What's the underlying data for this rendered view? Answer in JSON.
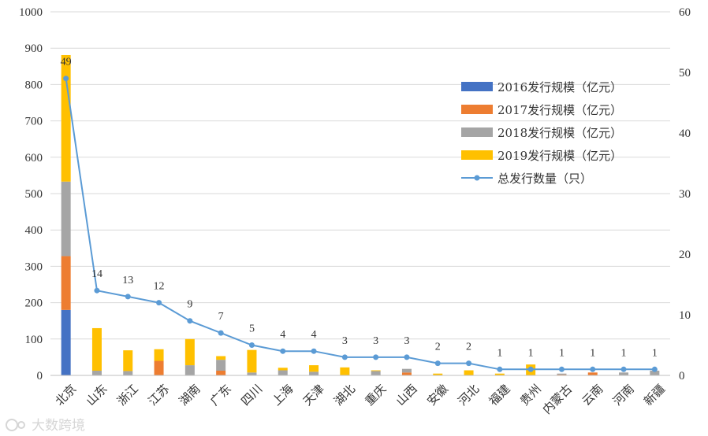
{
  "chart_data": {
    "type": "bar",
    "stacked": true,
    "categories": [
      "北京",
      "山东",
      "浙江",
      "江苏",
      "湖南",
      "广东",
      "四川",
      "上海",
      "天津",
      "湖北",
      "重庆",
      "山西",
      "安徽",
      "河北",
      "福建",
      "贵州",
      "内蒙古",
      "云南",
      "河南",
      "新疆"
    ],
    "series": [
      {
        "name": "2016发行规模（亿元）",
        "axis": "left",
        "color": "#4472C4",
        "values": [
          180,
          0,
          0,
          0,
          0,
          0,
          0,
          0,
          0,
          0,
          0,
          0,
          0,
          0,
          0,
          0,
          0,
          0,
          0,
          0
        ]
      },
      {
        "name": "2017发行规模（亿元）",
        "axis": "left",
        "color": "#ED7D31",
        "values": [
          148,
          0,
          0,
          40,
          0,
          13,
          0,
          0,
          0,
          0,
          0,
          8,
          0,
          0,
          0,
          0,
          2,
          8,
          0,
          0
        ]
      },
      {
        "name": "2018发行规模（亿元）",
        "axis": "left",
        "color": "#A5A5A5",
        "values": [
          205,
          13,
          12,
          0,
          28,
          30,
          8,
          14,
          10,
          0,
          12,
          10,
          0,
          0,
          0,
          0,
          3,
          0,
          8,
          13
        ]
      },
      {
        "name": "2019发行规模（亿元）",
        "axis": "left",
        "color": "#FFC000",
        "values": [
          348,
          117,
          57,
          32,
          72,
          10,
          62,
          7,
          18,
          22,
          2,
          0,
          5,
          14,
          5,
          30,
          0,
          0,
          0,
          0
        ]
      },
      {
        "name": "总发行数量（只）",
        "axis": "right",
        "type": "line",
        "color": "#5B9BD5",
        "values": [
          49,
          14,
          13,
          12,
          9,
          7,
          5,
          4,
          4,
          3,
          3,
          3,
          2,
          2,
          1,
          1,
          1,
          1,
          1,
          1
        ]
      }
    ],
    "ylim_left": [
      0,
      1000
    ],
    "yticks_left": [
      "0",
      "100",
      "200",
      "300",
      "400",
      "500",
      "600",
      "700",
      "800",
      "900",
      "1000"
    ],
    "ylim_right": [
      0,
      60
    ],
    "yticks_right": [
      "0",
      "10",
      "20",
      "30",
      "40",
      "50",
      "60"
    ],
    "grid": true,
    "legend_position": "right"
  },
  "watermark": "大数跨境",
  "colors": {
    "grid": "#d9d9d9",
    "axis": "#bfbfbf"
  }
}
